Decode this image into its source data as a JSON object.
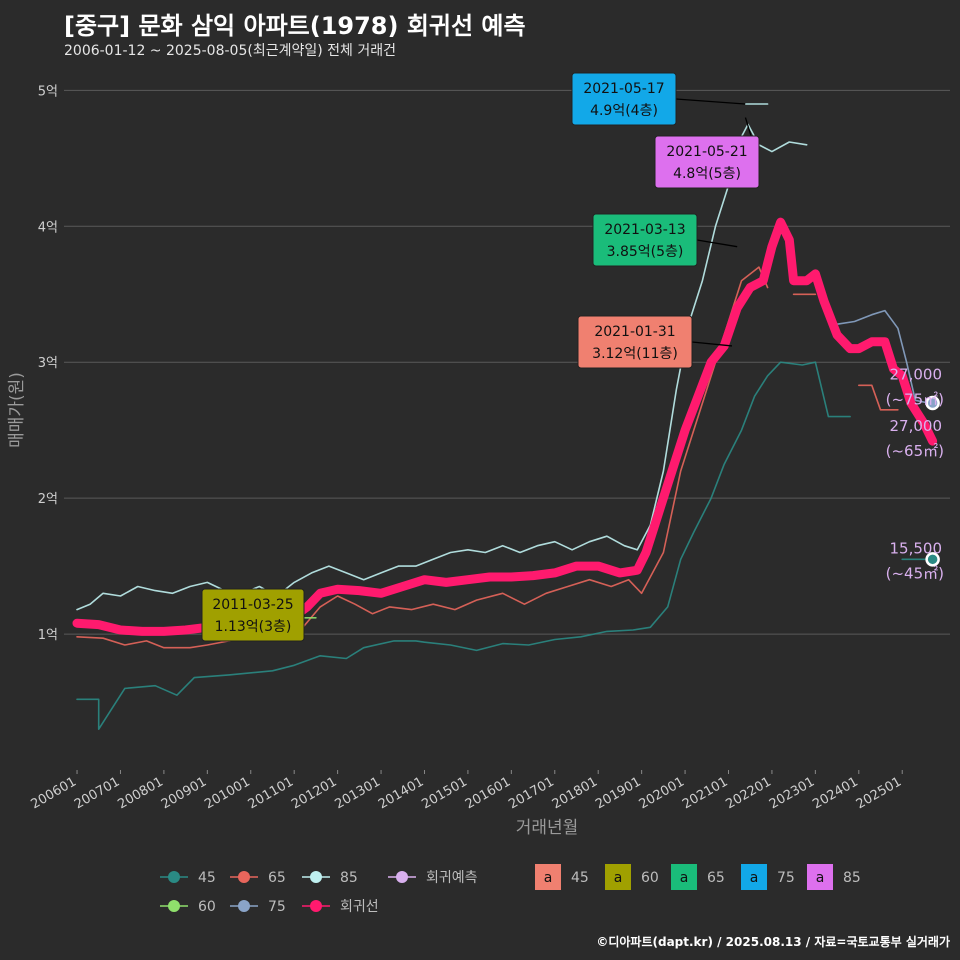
{
  "title": "[중구] 문화 삼익 아파트(1978) 회귀선 예측",
  "subtitle": "2006-01-12 ~ 2025-08-05(최근계약일) 전체 거래건",
  "caption": "©디아파트(dapt.kr) / 2025.08.13 / 자료=국토교통부 실거래가",
  "colors": {
    "bg": "#2b2b2b",
    "grid": "#5a5a5a",
    "s45": "#2a8a84",
    "s60": "#8fe06c",
    "s65": "#e8665c",
    "s75": "#8aa4c8",
    "s85": "#bff0f0",
    "reg": "#ff1a6e",
    "pred": "#d9b0ee",
    "a45": "#f08070",
    "a60": "#a0a000",
    "a65": "#1abc7a",
    "a75": "#12a8e8",
    "a85": "#dd70ee"
  },
  "chart_data": {
    "type": "line",
    "xlabel": "거래년월",
    "ylabel": "매매가(원)",
    "x_ticks": [
      "200601",
      "200701",
      "200801",
      "200901",
      "201001",
      "201101",
      "201201",
      "201301",
      "201401",
      "201501",
      "201601",
      "201701",
      "201801",
      "201901",
      "202001",
      "202101",
      "202201",
      "202301",
      "202401",
      "202501"
    ],
    "y_ticks": [
      "1억",
      "2억",
      "3억",
      "4억",
      "5억"
    ],
    "y_tick_values": [
      1,
      2,
      3,
      4,
      5
    ],
    "x_range": [
      2005.7,
      2026.1
    ],
    "y_range": [
      0,
      5.15
    ],
    "grid": true,
    "series": [
      {
        "name": "45",
        "color_key": "s45",
        "points": [
          [
            2006.0,
            0.52
          ],
          [
            2006.5,
            0.52
          ],
          [
            2006.5,
            0.3
          ],
          [
            2007.1,
            0.6
          ],
          [
            2007.8,
            0.62
          ],
          [
            2008.3,
            0.55
          ],
          [
            2008.7,
            0.68
          ],
          [
            2009.5,
            0.7
          ],
          [
            2010.5,
            0.73
          ],
          [
            2011.0,
            0.77
          ],
          [
            2011.6,
            0.84
          ],
          [
            2012.2,
            0.82
          ],
          [
            2012.6,
            0.9
          ],
          [
            2013.3,
            0.95
          ],
          [
            2013.8,
            0.95
          ],
          [
            2014.0,
            0.94
          ],
          [
            2014.6,
            0.92
          ],
          [
            2015.2,
            0.88
          ],
          [
            2015.8,
            0.93
          ],
          [
            2016.4,
            0.92
          ],
          [
            2017.0,
            0.96
          ],
          [
            2017.6,
            0.98
          ],
          [
            2018.2,
            1.02
          ],
          [
            2018.8,
            1.03
          ],
          [
            2019.2,
            1.05
          ],
          [
            2019.6,
            1.2
          ],
          [
            2019.9,
            1.55
          ],
          [
            2020.2,
            1.75
          ],
          [
            2020.6,
            2.0
          ],
          [
            2020.9,
            2.25
          ],
          [
            2021.3,
            2.5
          ],
          [
            2021.6,
            2.75
          ],
          [
            2021.9,
            2.9
          ],
          [
            2022.2,
            3.0
          ],
          [
            2022.7,
            2.98
          ],
          [
            2023.0,
            3.0
          ],
          [
            2023.3,
            2.6
          ],
          [
            2023.8,
            2.6
          ]
        ]
      },
      {
        "name": "45-recent",
        "color_key": "s45",
        "points": [
          [
            2025.0,
            1.55
          ],
          [
            2025.6,
            1.55
          ]
        ]
      },
      {
        "name": "65",
        "color_key": "s65",
        "points": [
          [
            2006.0,
            0.98
          ],
          [
            2006.6,
            0.97
          ],
          [
            2007.1,
            0.92
          ],
          [
            2007.6,
            0.95
          ],
          [
            2008.0,
            0.9
          ],
          [
            2008.6,
            0.9
          ],
          [
            2009.0,
            0.92
          ],
          [
            2009.5,
            0.95
          ],
          [
            2010.2,
            0.98
          ],
          [
            2010.8,
            1.02
          ],
          [
            2011.2,
            1.05
          ],
          [
            2011.6,
            1.2
          ],
          [
            2012.0,
            1.28
          ],
          [
            2012.4,
            1.22
          ],
          [
            2012.8,
            1.15
          ],
          [
            2013.2,
            1.2
          ],
          [
            2013.7,
            1.18
          ],
          [
            2014.2,
            1.22
          ],
          [
            2014.7,
            1.18
          ],
          [
            2015.2,
            1.25
          ],
          [
            2015.8,
            1.3
          ],
          [
            2016.3,
            1.22
          ],
          [
            2016.8,
            1.3
          ],
          [
            2017.3,
            1.35
          ],
          [
            2017.8,
            1.4
          ],
          [
            2018.3,
            1.35
          ],
          [
            2018.7,
            1.4
          ],
          [
            2019.0,
            1.3
          ],
          [
            2019.5,
            1.6
          ],
          [
            2019.9,
            2.2
          ],
          [
            2020.3,
            2.6
          ],
          [
            2020.7,
            3.0
          ],
          [
            2021.0,
            3.3
          ],
          [
            2021.3,
            3.6
          ],
          [
            2021.7,
            3.7
          ],
          [
            2021.9,
            3.55
          ]
        ]
      },
      {
        "name": "65-b",
        "color_key": "s65",
        "points": [
          [
            2022.5,
            3.5
          ],
          [
            2023.0,
            3.5
          ]
        ]
      },
      {
        "name": "65-c",
        "color_key": "s65",
        "points": [
          [
            2024.0,
            2.83
          ],
          [
            2024.3,
            2.83
          ],
          [
            2024.5,
            2.65
          ],
          [
            2024.9,
            2.65
          ]
        ]
      },
      {
        "name": "60",
        "color_key": "s60",
        "points": [
          [
            2011.1,
            1.12
          ],
          [
            2011.5,
            1.12
          ]
        ]
      },
      {
        "name": "75",
        "color_key": "s75",
        "points": [
          [
            2023.5,
            3.28
          ],
          [
            2023.9,
            3.3
          ],
          [
            2024.3,
            3.35
          ],
          [
            2024.6,
            3.38
          ],
          [
            2024.9,
            3.25
          ],
          [
            2025.1,
            3.0
          ],
          [
            2025.3,
            2.72
          ],
          [
            2025.6,
            2.7
          ]
        ]
      },
      {
        "name": "85",
        "color_key": "s85",
        "points": [
          [
            2006.0,
            1.18
          ],
          [
            2006.3,
            1.22
          ],
          [
            2006.6,
            1.3
          ],
          [
            2007.0,
            1.28
          ],
          [
            2007.4,
            1.35
          ],
          [
            2007.8,
            1.32
          ],
          [
            2008.2,
            1.3
          ],
          [
            2008.6,
            1.35
          ],
          [
            2009.0,
            1.38
          ],
          [
            2009.4,
            1.32
          ],
          [
            2009.8,
            1.3
          ],
          [
            2010.2,
            1.35
          ],
          [
            2010.6,
            1.28
          ],
          [
            2011.0,
            1.38
          ],
          [
            2011.4,
            1.45
          ],
          [
            2011.8,
            1.5
          ],
          [
            2012.2,
            1.45
          ],
          [
            2012.6,
            1.4
          ],
          [
            2013.0,
            1.45
          ],
          [
            2013.4,
            1.5
          ],
          [
            2013.8,
            1.5
          ],
          [
            2014.2,
            1.55
          ],
          [
            2014.6,
            1.6
          ],
          [
            2015.0,
            1.62
          ],
          [
            2015.4,
            1.6
          ],
          [
            2015.8,
            1.65
          ],
          [
            2016.2,
            1.6
          ],
          [
            2016.6,
            1.65
          ],
          [
            2017.0,
            1.68
          ],
          [
            2017.4,
            1.62
          ],
          [
            2017.8,
            1.68
          ],
          [
            2018.2,
            1.72
          ],
          [
            2018.6,
            1.65
          ],
          [
            2018.9,
            1.62
          ],
          [
            2019.2,
            1.8
          ],
          [
            2019.5,
            2.2
          ],
          [
            2019.8,
            2.8
          ],
          [
            2020.1,
            3.3
          ],
          [
            2020.4,
            3.6
          ],
          [
            2020.7,
            4.0
          ],
          [
            2021.0,
            4.3
          ],
          [
            2021.2,
            4.6
          ],
          [
            2021.45,
            4.75
          ],
          [
            2021.7,
            4.6
          ],
          [
            2022.0,
            4.55
          ],
          [
            2022.4,
            4.62
          ],
          [
            2022.8,
            4.6
          ]
        ]
      },
      {
        "name": "85-top",
        "color_key": "s85",
        "points": [
          [
            2021.4,
            4.9
          ],
          [
            2021.9,
            4.9
          ]
        ]
      },
      {
        "name": "회귀선",
        "color_key": "reg",
        "width": 9,
        "points": [
          [
            2006.0,
            1.08
          ],
          [
            2006.5,
            1.07
          ],
          [
            2007.0,
            1.03
          ],
          [
            2007.5,
            1.02
          ],
          [
            2008.0,
            1.02
          ],
          [
            2008.5,
            1.03
          ],
          [
            2009.0,
            1.05
          ],
          [
            2009.5,
            1.08
          ],
          [
            2010.0,
            1.1
          ],
          [
            2010.5,
            1.12
          ],
          [
            2011.0,
            1.13
          ],
          [
            2011.3,
            1.2
          ],
          [
            2011.6,
            1.3
          ],
          [
            2012.0,
            1.33
          ],
          [
            2012.5,
            1.32
          ],
          [
            2013.0,
            1.3
          ],
          [
            2013.5,
            1.35
          ],
          [
            2014.0,
            1.4
          ],
          [
            2014.5,
            1.38
          ],
          [
            2015.0,
            1.4
          ],
          [
            2015.5,
            1.42
          ],
          [
            2016.0,
            1.42
          ],
          [
            2016.5,
            1.43
          ],
          [
            2017.0,
            1.45
          ],
          [
            2017.5,
            1.5
          ],
          [
            2018.0,
            1.5
          ],
          [
            2018.5,
            1.45
          ],
          [
            2018.9,
            1.47
          ],
          [
            2019.1,
            1.6
          ],
          [
            2019.4,
            1.9
          ],
          [
            2019.7,
            2.2
          ],
          [
            2020.0,
            2.5
          ],
          [
            2020.3,
            2.75
          ],
          [
            2020.6,
            3.0
          ],
          [
            2020.9,
            3.12
          ],
          [
            2021.2,
            3.4
          ],
          [
            2021.5,
            3.55
          ],
          [
            2021.8,
            3.6
          ],
          [
            2022.0,
            3.85
          ],
          [
            2022.2,
            4.03
          ],
          [
            2022.4,
            3.9
          ],
          [
            2022.5,
            3.6
          ],
          [
            2022.8,
            3.6
          ],
          [
            2023.0,
            3.65
          ],
          [
            2023.2,
            3.45
          ],
          [
            2023.5,
            3.2
          ],
          [
            2023.8,
            3.1
          ],
          [
            2024.0,
            3.1
          ],
          [
            2024.3,
            3.15
          ],
          [
            2024.6,
            3.15
          ],
          [
            2024.8,
            2.95
          ],
          [
            2025.0,
            2.9
          ],
          [
            2025.2,
            2.7
          ],
          [
            2025.5,
            2.55
          ],
          [
            2025.7,
            2.42
          ]
        ]
      }
    ],
    "end_points": [
      {
        "name": "75",
        "color_key": "s75",
        "x": 2025.7,
        "y": 2.7
      },
      {
        "name": "45",
        "color_key": "s45",
        "x": 2025.7,
        "y": 1.55
      }
    ],
    "end_labels": [
      {
        "id": "e75",
        "line1": "27,000",
        "line2": "(~75㎡)",
        "y": 2.83
      },
      {
        "id": "e65",
        "line1": "27,000",
        "line2": "(~65㎡)",
        "y": 2.45
      },
      {
        "id": "e45",
        "line1": "15,500",
        "line2": "(~45㎡)",
        "y": 1.55
      }
    ],
    "annotations": [
      {
        "id": "a75",
        "date": "2021-05-17",
        "price": "4.9억(4층)",
        "color_key": "a75",
        "x": 2021.38,
        "y": 4.9
      },
      {
        "id": "a85",
        "date": "2021-05-21",
        "price": "4.8억(5층)",
        "color_key": "a85",
        "x": 2021.39,
        "y": 4.8
      },
      {
        "id": "a65",
        "date": "2021-03-13",
        "price": "3.85억(5층)",
        "color_key": "a65",
        "x": 2021.2,
        "y": 3.85
      },
      {
        "id": "a45",
        "date": "2021-01-31",
        "price": "3.12억(11층)",
        "color_key": "a45",
        "x": 2021.08,
        "y": 3.12
      },
      {
        "id": "a60",
        "date": "2011-03-25",
        "price": "1.13억(3층)",
        "color_key": "a60",
        "x": 2011.23,
        "y": 1.13
      }
    ],
    "legend": {
      "placement": "bottom",
      "line_items": [
        {
          "label": "45",
          "color_key": "s45"
        },
        {
          "label": "65",
          "color_key": "s65"
        },
        {
          "label": "85",
          "color_key": "s85"
        },
        {
          "label": "회귀예측",
          "color_key": "pred"
        },
        {
          "label": "60",
          "color_key": "s60"
        },
        {
          "label": "75",
          "color_key": "s75"
        },
        {
          "label": "회귀선",
          "color_key": "reg"
        }
      ],
      "box_items": [
        {
          "label": "45",
          "color_key": "a45"
        },
        {
          "label": "60",
          "color_key": "a60"
        },
        {
          "label": "65",
          "color_key": "a65"
        },
        {
          "label": "75",
          "color_key": "a75"
        },
        {
          "label": "85",
          "color_key": "a85"
        }
      ],
      "box_glyph": "a"
    }
  }
}
